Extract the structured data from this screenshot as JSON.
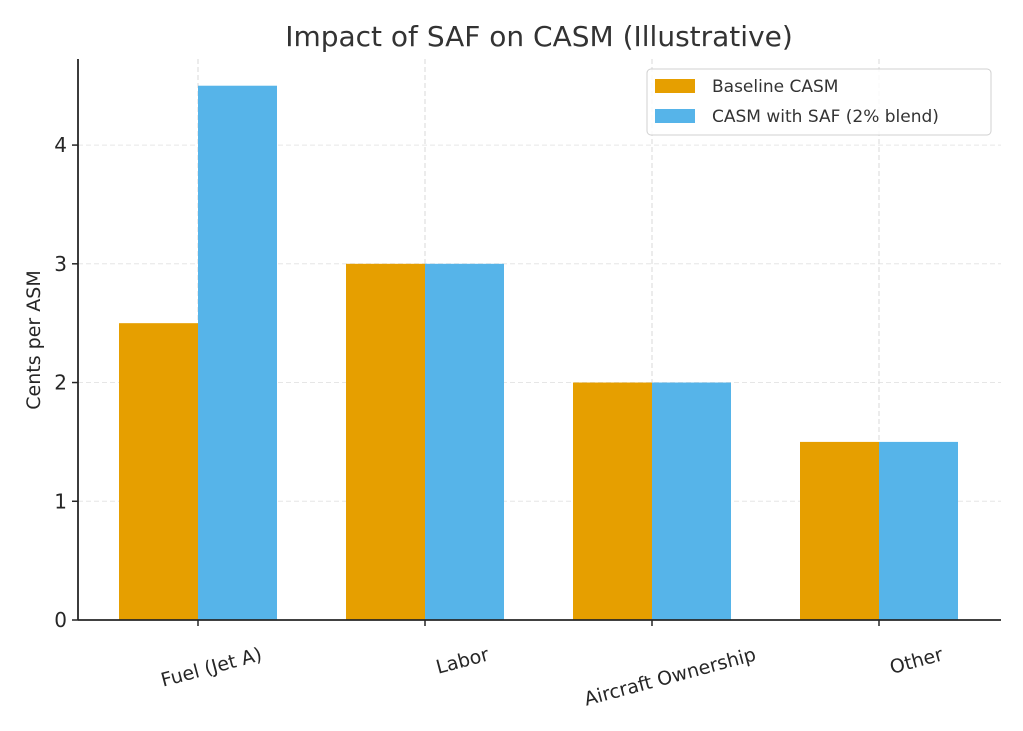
{
  "chart_data": {
    "type": "bar",
    "title": "Impact of SAF on CASM (Illustrative)",
    "xlabel": "",
    "ylabel": "Cents per ASM",
    "categories": [
      "Fuel (Jet A)",
      "Labor",
      "Aircraft Ownership",
      "Other"
    ],
    "series": [
      {
        "name": "Baseline CASM",
        "color": "#E69F00",
        "values": [
          2.5,
          3.0,
          2.0,
          1.5
        ]
      },
      {
        "name": "CASM with SAF (2% blend)",
        "color": "#56B4E9",
        "values": [
          4.5,
          3.0,
          2.0,
          1.5
        ]
      }
    ],
    "ylim": [
      0,
      4.725
    ],
    "yticks": [
      0,
      1,
      2,
      3,
      4
    ],
    "grid": true,
    "legend_position": "top-right",
    "xtick_rotation_deg": -15
  }
}
